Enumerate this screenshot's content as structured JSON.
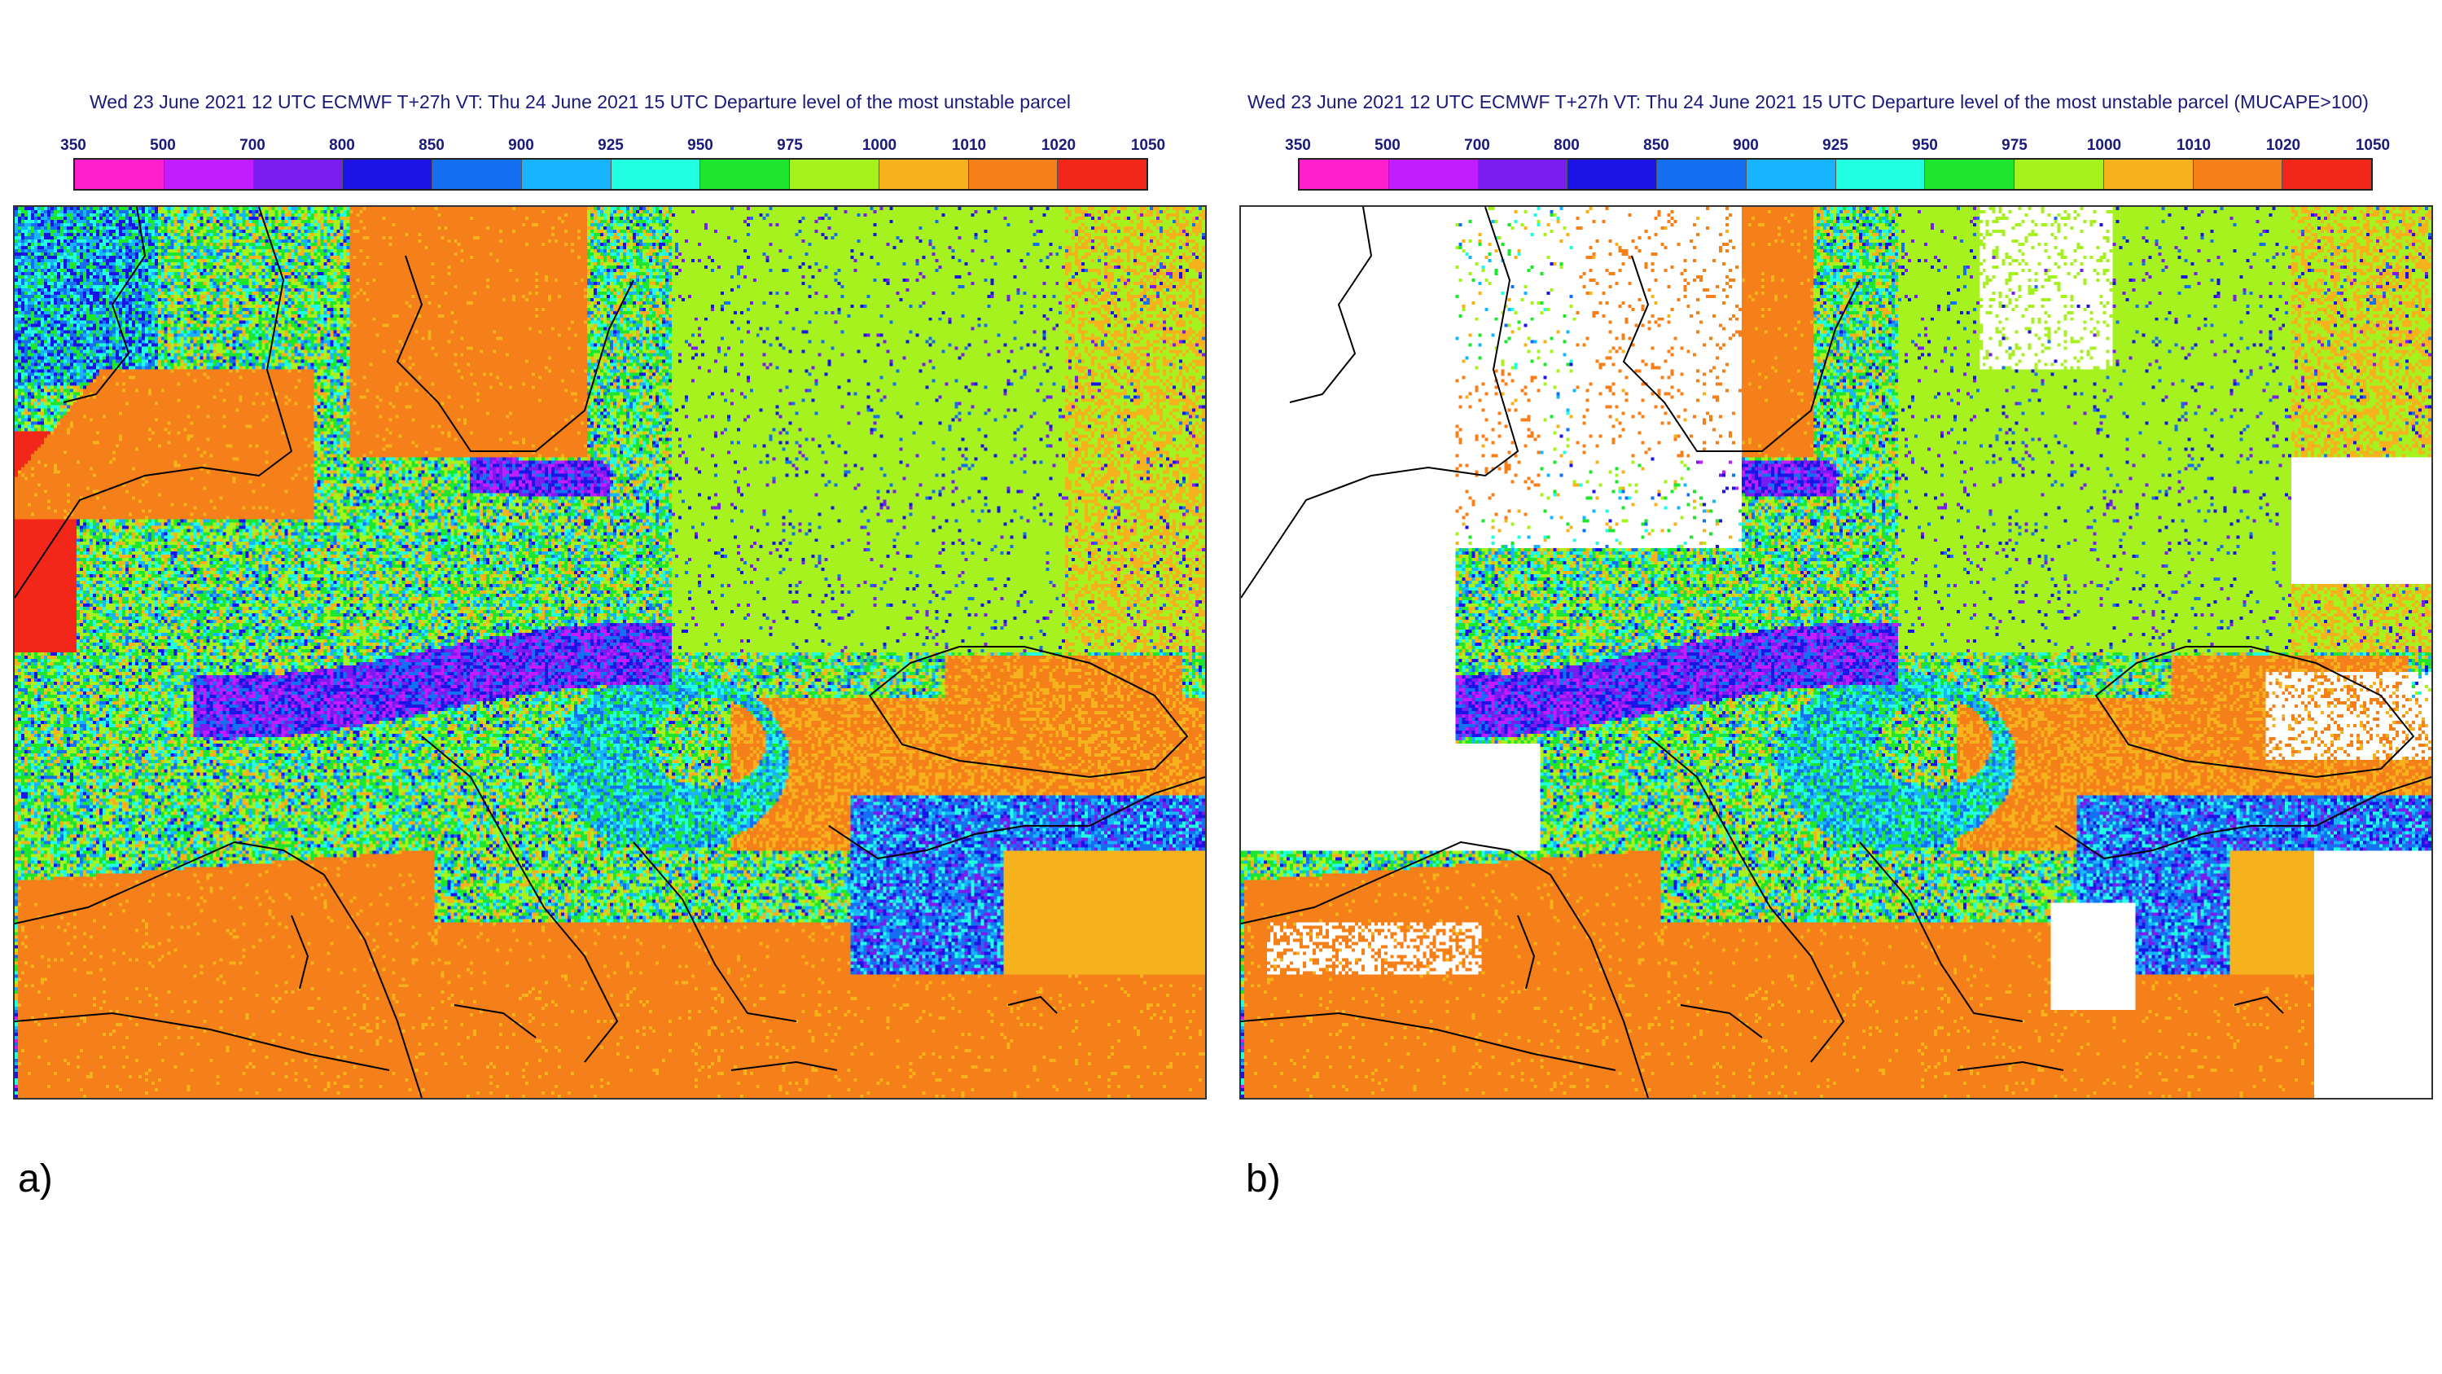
{
  "panels": [
    {
      "label": "a)",
      "title": "Wed 23 June 2021 12 UTC ECMWF T+27h VT: Thu 24 June 2021 15 UTC Departure level of the most unstable parcel",
      "masked": false
    },
    {
      "label": "b)",
      "title": "Wed 23 June 2021 12 UTC ECMWF T+27h VT: Thu 24 June 2021 15 UTC Departure level of the most unstable parcel (MUCAPE>100)",
      "masked": true
    }
  ],
  "legend": {
    "levels": [
      "350",
      "500",
      "700",
      "800",
      "850",
      "900",
      "925",
      "950",
      "975",
      "1000",
      "1010",
      "1020",
      "1050"
    ],
    "colors": [
      "#ff1fcc",
      "#c21dff",
      "#7a1cf0",
      "#1a14e6",
      "#1470f0",
      "#19b4ff",
      "#22ffe0",
      "#1ee62e",
      "#a6f21f",
      "#f5b21c",
      "#f57f18",
      "#f2271a"
    ]
  },
  "map": {
    "sea_color": "#f57f18",
    "masked_color": "#ffffff",
    "coastline_color": "#000000"
  }
}
